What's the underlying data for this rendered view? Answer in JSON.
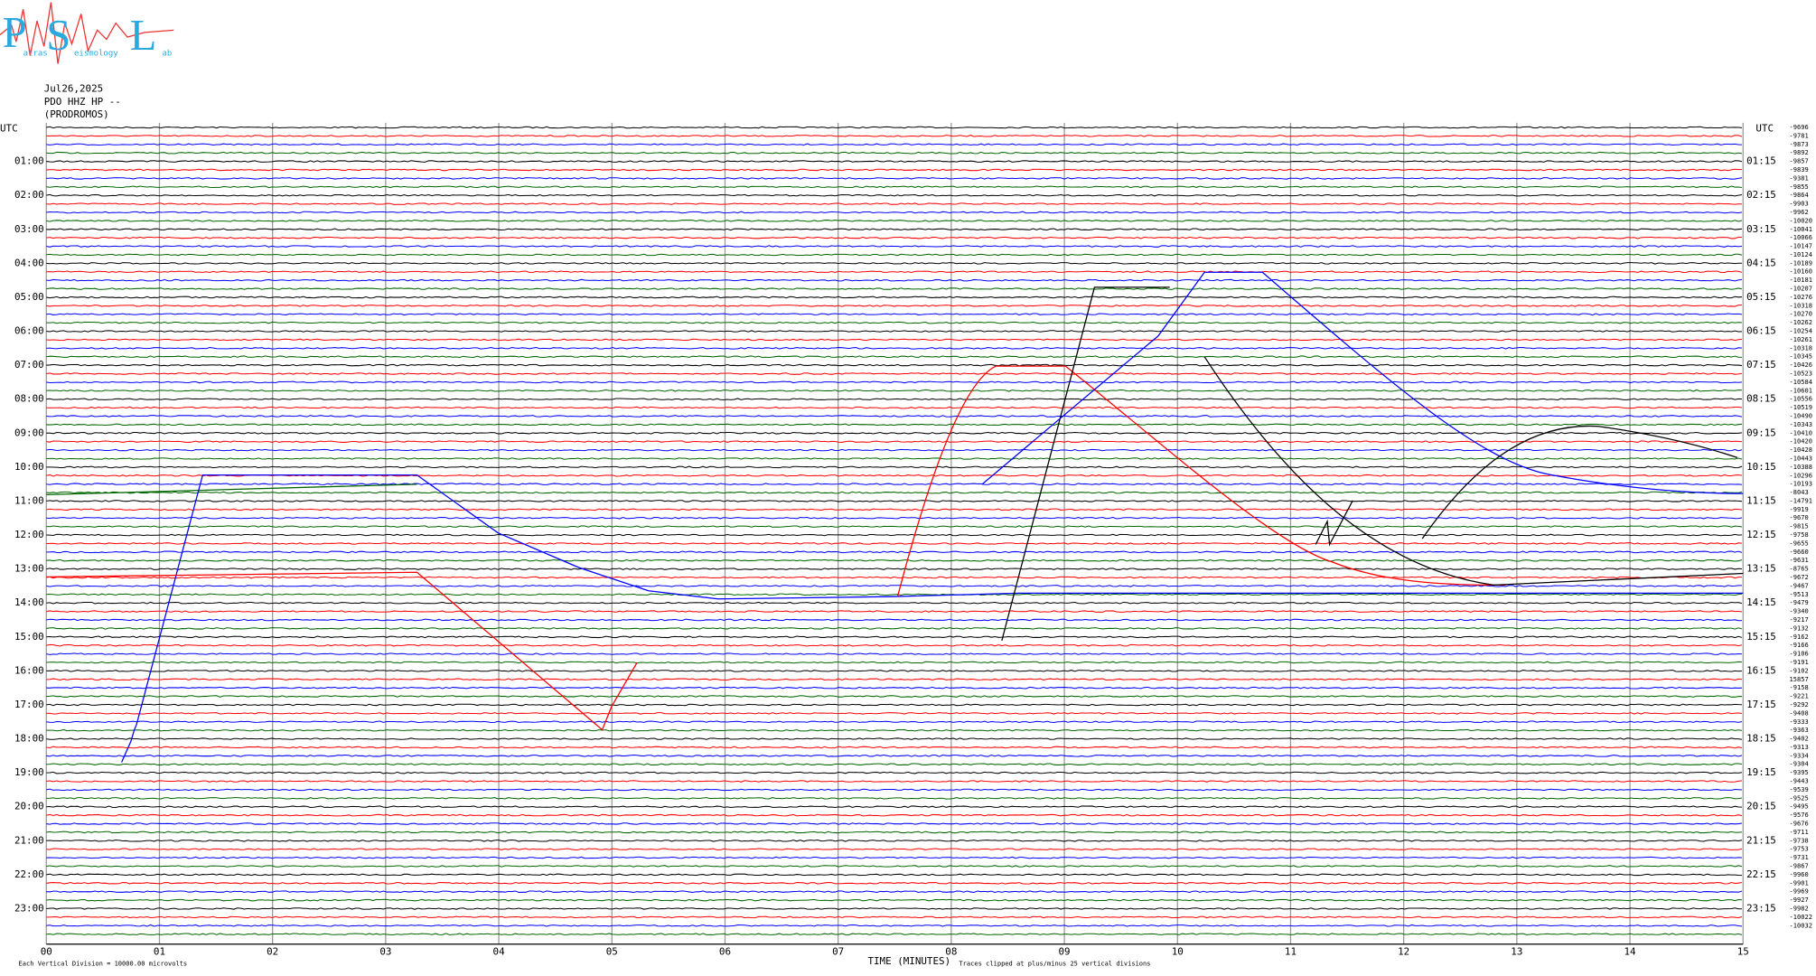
{
  "header": {
    "logo": {
      "letters": [
        "P",
        "S",
        "L"
      ],
      "words": [
        "atras",
        "eismology",
        "ab"
      ]
    },
    "date": "Jul26,2025",
    "station": "PDO HHZ HP --",
    "site": "(PRODROMOS)"
  },
  "left_axis": {
    "title": "UTC",
    "labels": [
      "01:00",
      "02:00",
      "03:00",
      "04:00",
      "05:00",
      "06:00",
      "07:00",
      "08:00",
      "09:00",
      "10:00",
      "11:00",
      "12:00",
      "13:00",
      "14:00",
      "15:00",
      "16:00",
      "17:00",
      "18:00",
      "19:00",
      "20:00",
      "21:00",
      "22:00",
      "23:00"
    ]
  },
  "right_axis": {
    "title": "UTC",
    "labels": [
      "01:15",
      "02:15",
      "03:15",
      "04:15",
      "05:15",
      "06:15",
      "07:15",
      "08:15",
      "09:15",
      "10:15",
      "11:15",
      "12:15",
      "13:15",
      "14:15",
      "15:15",
      "16:15",
      "17:15",
      "18:15",
      "19:15",
      "20:15",
      "21:15",
      "22:15",
      "23:15"
    ]
  },
  "trace_offsets": [
    "-9696",
    "-9781",
    "-9873",
    "-9892",
    "-9857",
    "-9839",
    "-9381",
    "-9855",
    "-9864",
    "-9903",
    "-9962",
    "-10020",
    "-10041",
    "-10066",
    "-10147",
    "-10124",
    "-10189",
    "-10160",
    "-10181",
    "-10207",
    "-10276",
    "-10318",
    "-10270",
    "-10262",
    "-10254",
    "-10261",
    "-10318",
    "-10345",
    "-10426",
    "-10523",
    "-10584",
    "-10601",
    "-10556",
    "-10519",
    "-10490",
    "-10343",
    "-10410",
    "-10420",
    "-10428",
    "-10443",
    "-10388",
    "-10296",
    "-10193",
    "-8043",
    "-14791",
    "-9919",
    "-9670",
    "-9815",
    "-9758",
    "-9655",
    "-9660",
    "-9631",
    "-8765",
    "-9672",
    "-9467",
    "-9513",
    "-9479",
    "-9340",
    "-9217",
    "-9132",
    "-9162",
    "-9166",
    "-9106",
    "-9191",
    "-9102",
    "15857",
    "-9158",
    "-9221",
    "-9292",
    "-9408",
    "-9333",
    "-9363",
    "-9402",
    "-9313",
    "-9334",
    "-9304",
    "-9395",
    "-9443",
    "-9539",
    "-9525",
    "-9495",
    "-9576",
    "-9676",
    "-9711",
    "-9738",
    "-9753",
    "-9731",
    "-9867",
    "-9960",
    "-9901",
    "-9969",
    "-9927",
    "-9982",
    "-10022",
    "-10032"
  ],
  "x_axis": {
    "labels": [
      "00",
      "01",
      "02",
      "03",
      "04",
      "05",
      "06",
      "07",
      "08",
      "09",
      "10",
      "11",
      "12",
      "13",
      "14",
      "15"
    ],
    "title": "TIME (MINUTES)"
  },
  "notes": {
    "scale": "Each Vertical Division = 10000.00 microvolts",
    "clip": "Traces clipped at plus/minus 25 vertical divisions"
  }
}
